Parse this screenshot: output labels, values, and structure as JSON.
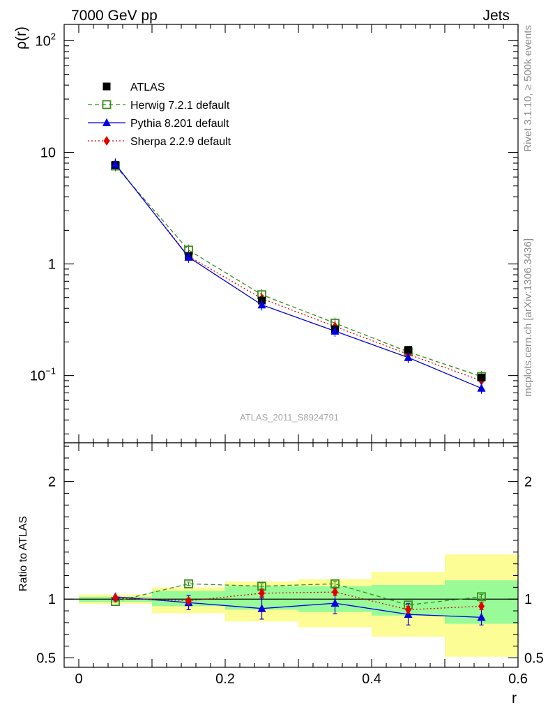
{
  "header": {
    "left": "7000 GeV pp",
    "right": "Jets"
  },
  "side_labels": {
    "top": "Rivet 3.1.10, ≥ 500k events",
    "bottom": "mcplots.cern.ch [arXiv:1306.3436]"
  },
  "watermark": "ATLAS_2011_S8924791",
  "chart_data": [
    {
      "type": "scatter",
      "panel": "main",
      "ylabel": "ρ(r)",
      "yscale": "log",
      "ylim": [
        0.025,
        140
      ],
      "xlim": [
        -0.02,
        0.6
      ],
      "y_ticks": [
        {
          "v": 100,
          "base": "10",
          "exp": "2"
        },
        {
          "v": 10,
          "base": "10",
          "exp": ""
        },
        {
          "v": 1,
          "base": "1",
          "exp": ""
        },
        {
          "v": 0.1,
          "base": "10",
          "exp": "−1"
        }
      ],
      "x": [
        0.05,
        0.15,
        0.25,
        0.35,
        0.45,
        0.55
      ],
      "legend_position": "top-left",
      "series": [
        {
          "name": "ATLAS",
          "style": "data",
          "color": "#000000",
          "marker": "square-filled",
          "values": [
            7.7,
            1.18,
            0.47,
            0.26,
            0.17,
            0.096
          ]
        },
        {
          "name": "Herwig 7.2.1 default",
          "style": "dashed",
          "color": "#3a8c1e",
          "marker": "square-open",
          "values": [
            7.55,
            1.33,
            0.53,
            0.295,
            0.163,
            0.098
          ]
        },
        {
          "name": "Pythia 8.201 default",
          "style": "solid",
          "color": "#0000e0",
          "marker": "triangle-filled",
          "values": [
            7.85,
            1.15,
            0.43,
            0.25,
            0.145,
            0.077
          ]
        },
        {
          "name": "Sherpa 2.2.9 default",
          "style": "dotted",
          "color": "#e00000",
          "marker": "diamond-filled",
          "values": [
            7.8,
            1.17,
            0.49,
            0.275,
            0.155,
            0.09
          ]
        }
      ]
    },
    {
      "type": "scatter",
      "panel": "ratio",
      "xlabel": "r",
      "ylabel": "Ratio to ATLAS",
      "ylim": [
        0.42,
        2.33
      ],
      "xlim": [
        -0.02,
        0.6
      ],
      "x_ticks": [
        {
          "v": 0,
          "label": "0"
        },
        {
          "v": 0.2,
          "label": "0.2"
        },
        {
          "v": 0.4,
          "label": "0.4"
        },
        {
          "v": 0.6,
          "label": "0.6"
        }
      ],
      "y_ticks": [
        {
          "v": 2,
          "label": "2"
        },
        {
          "v": 1,
          "label": "1"
        },
        {
          "v": 0.5,
          "label": "0.5"
        }
      ],
      "bins": [
        {
          "lo": 0.0,
          "hi": 0.1,
          "green": [
            0.975,
            1.02
          ],
          "yellow": [
            0.96,
            1.04
          ]
        },
        {
          "lo": 0.1,
          "hi": 0.2,
          "green": [
            0.94,
            1.07
          ],
          "yellow": [
            0.88,
            1.1
          ]
        },
        {
          "lo": 0.2,
          "hi": 0.3,
          "green": [
            0.91,
            1.11
          ],
          "yellow": [
            0.81,
            1.15
          ]
        },
        {
          "lo": 0.3,
          "hi": 0.4,
          "green": [
            0.89,
            1.11
          ],
          "yellow": [
            0.76,
            1.17
          ]
        },
        {
          "lo": 0.4,
          "hi": 0.5,
          "green": [
            0.86,
            1.12
          ],
          "yellow": [
            0.68,
            1.23
          ]
        },
        {
          "lo": 0.5,
          "hi": 0.6,
          "green": [
            0.79,
            1.16
          ],
          "yellow": [
            0.51,
            1.38
          ]
        }
      ],
      "x": [
        0.05,
        0.15,
        0.25,
        0.35,
        0.45,
        0.55
      ],
      "series": [
        {
          "name": "Herwig 7.2.1 default",
          "style": "dashed",
          "color": "#3a8c1e",
          "marker": "square-open",
          "values": [
            0.98,
            1.13,
            1.11,
            1.13,
            0.95,
            1.02
          ],
          "err": [
            0.005,
            0.015,
            0.02,
            0.02,
            0.015,
            0.02
          ]
        },
        {
          "name": "Pythia 8.201 default",
          "style": "solid",
          "color": "#0000e0",
          "marker": "triangle-filled",
          "values": [
            1.02,
            0.97,
            0.92,
            0.965,
            0.87,
            0.845
          ],
          "err": [
            0.005,
            0.06,
            0.09,
            0.09,
            0.09,
            0.065
          ]
        },
        {
          "name": "Sherpa 2.2.9 default",
          "style": "dotted",
          "color": "#e00000",
          "marker": "diamond-filled",
          "values": [
            1.01,
            0.985,
            1.05,
            1.06,
            0.91,
            0.94
          ],
          "err": [
            0.005,
            0.02,
            0.03,
            0.03,
            0.03,
            0.03
          ]
        }
      ]
    }
  ]
}
